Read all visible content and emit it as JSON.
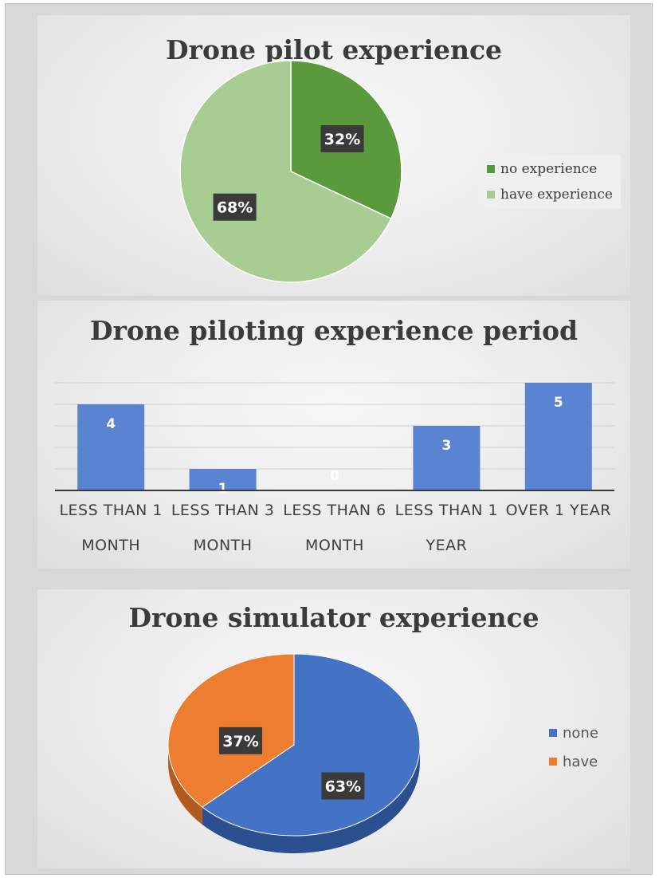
{
  "chart_data": [
    {
      "type": "pie",
      "title": "Drone pilot experience",
      "categories": [
        "no experience",
        "have experience"
      ],
      "values": [
        32,
        68
      ],
      "data_labels": [
        "32%",
        "68%"
      ],
      "colors": [
        "#5b9a3c",
        "#a8cd92"
      ],
      "legend": "right"
    },
    {
      "type": "bar",
      "title": "Drone piloting experience period",
      "categories": [
        [
          "LESS THAN 1",
          "MONTH"
        ],
        [
          "LESS THAN 3",
          "MONTH"
        ],
        [
          "LESS THAN 6",
          "MONTH"
        ],
        [
          "LESS THAN 1",
          "YEAR"
        ],
        [
          "OVER 1 YEAR",
          ""
        ]
      ],
      "values": [
        4,
        1,
        0,
        3,
        5
      ],
      "ylim": [
        0,
        5
      ],
      "grid": true,
      "color": "#5a84d2"
    },
    {
      "type": "pie",
      "title": "Drone simulator experience",
      "categories": [
        "none",
        "have"
      ],
      "values": [
        63,
        37
      ],
      "data_labels": [
        "63%",
        "37%"
      ],
      "colors": [
        "#4472c4",
        "#ed7d31"
      ],
      "legend": "right",
      "style": "3d"
    }
  ]
}
